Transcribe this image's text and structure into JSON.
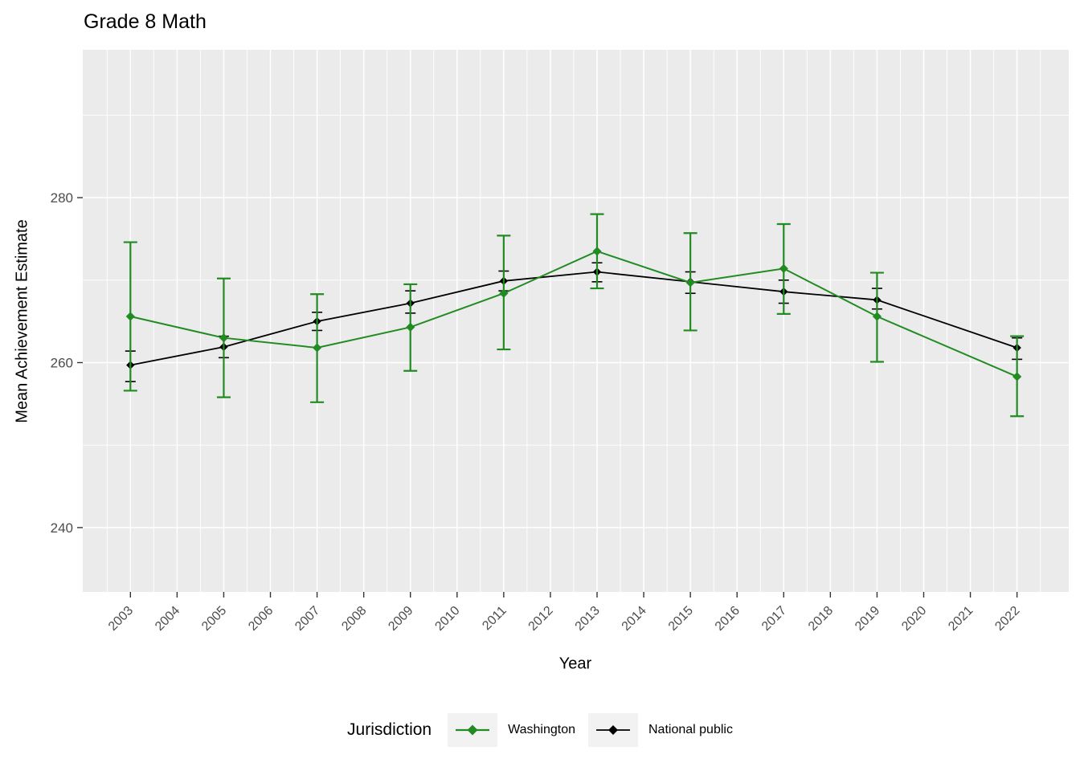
{
  "title": "Grade 8 Math",
  "axes": {
    "x": {
      "label": "Year",
      "tick_labels": [
        "2003",
        "2004",
        "2005",
        "2006",
        "2007",
        "2008",
        "2009",
        "2010",
        "2011",
        "2012",
        "2013",
        "2014",
        "2015",
        "2016",
        "2017",
        "2018",
        "2019",
        "2020",
        "2021",
        "2022"
      ]
    },
    "y": {
      "label": "Mean Achievement Estimate",
      "tick_labels": [
        "240",
        "260",
        "280"
      ]
    }
  },
  "legend": {
    "title": "Jurisdiction",
    "items": [
      {
        "label": "Washington",
        "color": "#228B22"
      },
      {
        "label": "National public",
        "color": "#000000"
      }
    ]
  },
  "colors": {
    "panel_bg": "#EBEBEB",
    "grid": "#FFFFFF",
    "tick_mark": "#333333",
    "tick_text": "#4D4D4D",
    "washington": "#228B22",
    "national": "#000000"
  },
  "chart_data": {
    "type": "line",
    "title": "Grade 8 Math",
    "xlabel": "Year",
    "ylabel": "Mean Achievement Estimate",
    "x": [
      2003,
      2005,
      2007,
      2009,
      2011,
      2013,
      2015,
      2017,
      2019,
      2022
    ],
    "x_axis_ticks": [
      2003,
      2004,
      2005,
      2006,
      2007,
      2008,
      2009,
      2010,
      2011,
      2012,
      2013,
      2014,
      2015,
      2016,
      2017,
      2018,
      2019,
      2020,
      2021,
      2022
    ],
    "y_major_gridlines": [
      240,
      260,
      280
    ],
    "y_minor_gridlines": [
      250,
      270,
      290
    ],
    "ylim_panel": [
      231.3,
      298.0
    ],
    "xlim_panel": [
      2002.0,
      2023.1
    ],
    "grid": "on",
    "marker": "diamond",
    "error_bars": true,
    "legend_position": "bottom",
    "series": [
      {
        "name": "National public",
        "color": "#000000",
        "values": [
          259.7,
          261.9,
          265.0,
          267.2,
          269.9,
          271.0,
          269.8,
          268.6,
          267.6,
          261.8
        ],
        "ci_low": [
          257.7,
          260.6,
          263.9,
          266.0,
          268.7,
          269.8,
          268.4,
          267.2,
          266.5,
          260.4
        ],
        "ci_high": [
          261.4,
          263.2,
          266.1,
          268.7,
          271.1,
          272.1,
          271.0,
          270.0,
          269.0,
          263.0
        ],
        "cap_width": 13,
        "bar_stroke": 1.6,
        "line_stroke": 1.8,
        "marker_r": 5.2
      },
      {
        "name": "Washington",
        "color": "#228B22",
        "values": [
          265.6,
          263.0,
          261.8,
          264.3,
          268.4,
          273.5,
          269.7,
          271.4,
          265.6,
          258.3
        ],
        "ci_low": [
          256.6,
          255.8,
          255.2,
          259.0,
          261.6,
          269.0,
          263.9,
          265.9,
          260.1,
          253.5
        ],
        "ci_high": [
          274.6,
          270.2,
          268.3,
          269.5,
          275.4,
          278.0,
          275.7,
          276.8,
          270.9,
          263.2
        ],
        "cap_width": 17,
        "bar_stroke": 2.2,
        "line_stroke": 2.0,
        "marker_r": 5.6
      }
    ]
  }
}
